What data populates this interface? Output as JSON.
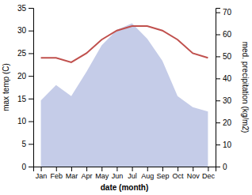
{
  "chart_data": {
    "type": "line",
    "xlabel": "date (month)",
    "ylabel": "max temp (C)",
    "y2label": "med. precipitation (kg/m2)",
    "categories": [
      "Jan",
      "Feb",
      "Mar",
      "Apr",
      "May",
      "Jun",
      "Jul",
      "Aug",
      "Sep",
      "Oct",
      "Nov",
      "Dec"
    ],
    "series": [
      {
        "type": "area",
        "axis": "y2",
        "color": "#c5cce8",
        "values": [
          30,
          37,
          32,
          43,
          55,
          62,
          65,
          58,
          48,
          32,
          27,
          25
        ]
      },
      {
        "type": "line",
        "color": "#c0504d",
        "values": [
          24,
          24,
          23,
          25,
          28,
          30,
          31,
          31,
          30,
          28,
          25,
          24
        ]
      }
    ],
    "ylim": [
      0,
      35
    ],
    "yticks": [
      0,
      5,
      10,
      15,
      20,
      25,
      30,
      35
    ],
    "y2lim": [
      0,
      72
    ],
    "y2ticks": [
      0,
      10,
      20,
      30,
      40,
      50,
      60,
      70
    ],
    "grid": false
  }
}
